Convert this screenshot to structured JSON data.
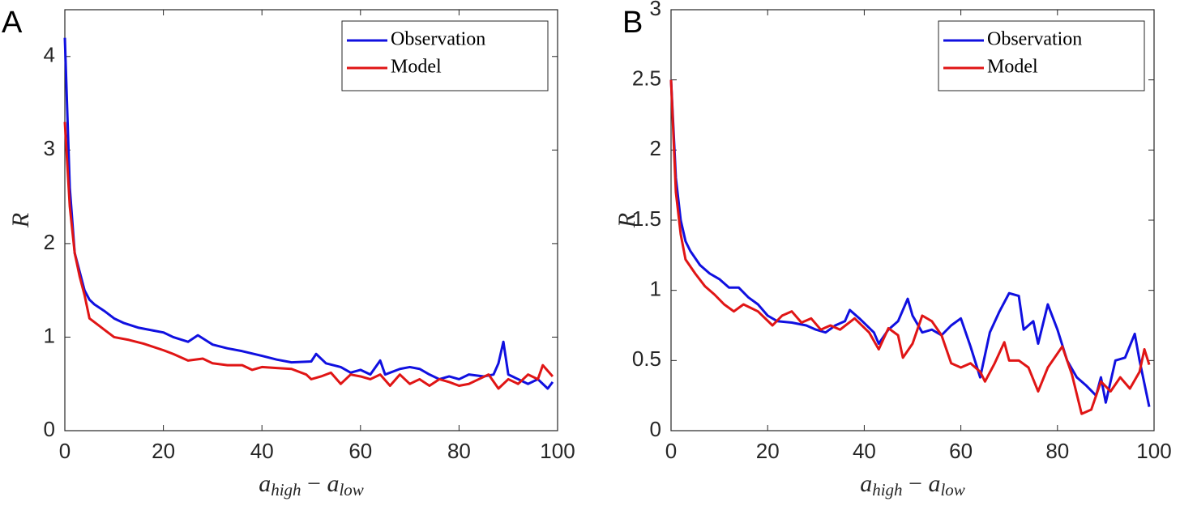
{
  "chart_data": [
    {
      "type": "line",
      "panel_label": "A",
      "ylabel": "R",
      "xlabel": [
        {
          "text": "a"
        },
        {
          "text": "high",
          "sub": true
        },
        {
          "text": " − "
        },
        {
          "text": "a"
        },
        {
          "text": "low",
          "sub": true
        }
      ],
      "xlim": [
        0,
        100
      ],
      "xticks": [
        0,
        20,
        40,
        60,
        80,
        100
      ],
      "ylim": [
        0,
        4.5
      ],
      "yticks": [
        0,
        1,
        2,
        3,
        4
      ],
      "legend": "upper right",
      "series": [
        {
          "name": "Observation",
          "color": "#1010e0",
          "x": [
            0,
            1,
            2,
            3,
            4,
            5,
            6,
            8,
            10,
            12,
            15,
            18,
            20,
            22,
            25,
            27,
            30,
            33,
            36,
            40,
            43,
            46,
            50,
            51,
            53,
            56,
            58,
            60,
            62,
            64,
            65,
            68,
            70,
            72,
            74,
            76,
            78,
            80,
            82,
            85,
            87,
            88,
            89,
            90,
            92,
            94,
            96,
            98,
            99
          ],
          "values": [
            4.2,
            2.6,
            1.9,
            1.7,
            1.5,
            1.4,
            1.35,
            1.28,
            1.2,
            1.15,
            1.1,
            1.07,
            1.05,
            1.0,
            0.95,
            1.02,
            0.92,
            0.88,
            0.85,
            0.8,
            0.76,
            0.73,
            0.74,
            0.82,
            0.72,
            0.68,
            0.62,
            0.65,
            0.6,
            0.75,
            0.6,
            0.66,
            0.68,
            0.66,
            0.6,
            0.55,
            0.58,
            0.55,
            0.6,
            0.58,
            0.6,
            0.72,
            0.95,
            0.6,
            0.55,
            0.5,
            0.55,
            0.45,
            0.52
          ]
        },
        {
          "name": "Model",
          "color": "#e01515",
          "x": [
            0,
            1,
            2,
            3,
            4,
            5,
            7,
            10,
            13,
            16,
            20,
            22,
            25,
            28,
            30,
            33,
            36,
            38,
            40,
            43,
            46,
            49,
            50,
            52,
            54,
            56,
            58,
            60,
            62,
            64,
            66,
            68,
            70,
            72,
            74,
            76,
            78,
            80,
            82,
            84,
            86,
            88,
            90,
            92,
            94,
            96,
            97,
            99
          ],
          "values": [
            3.3,
            2.4,
            1.9,
            1.65,
            1.45,
            1.2,
            1.12,
            1.0,
            0.97,
            0.93,
            0.86,
            0.82,
            0.75,
            0.77,
            0.72,
            0.7,
            0.7,
            0.65,
            0.68,
            0.67,
            0.66,
            0.6,
            0.55,
            0.58,
            0.62,
            0.5,
            0.6,
            0.58,
            0.55,
            0.6,
            0.48,
            0.6,
            0.5,
            0.55,
            0.48,
            0.55,
            0.52,
            0.48,
            0.5,
            0.55,
            0.6,
            0.45,
            0.55,
            0.5,
            0.6,
            0.55,
            0.7,
            0.58
          ]
        }
      ]
    },
    {
      "type": "line",
      "panel_label": "B",
      "ylabel": "R",
      "xlabel": [
        {
          "text": "a"
        },
        {
          "text": "high",
          "sub": true
        },
        {
          "text": " − "
        },
        {
          "text": "a"
        },
        {
          "text": "low",
          "sub": true
        }
      ],
      "xlim": [
        0,
        100
      ],
      "xticks": [
        0,
        20,
        40,
        60,
        80,
        100
      ],
      "ylim": [
        0,
        3
      ],
      "yticks": [
        0,
        0.5,
        1,
        1.5,
        2,
        2.5,
        3
      ],
      "legend": "upper right",
      "series": [
        {
          "name": "Observation",
          "color": "#1010e0",
          "x": [
            0,
            1,
            2,
            3,
            4,
            6,
            8,
            10,
            12,
            14,
            16,
            18,
            20,
            22,
            25,
            28,
            30,
            32,
            34,
            36,
            37,
            39,
            42,
            43,
            45,
            47,
            49,
            50,
            52,
            54,
            56,
            58,
            60,
            62,
            64,
            66,
            68,
            70,
            72,
            73,
            75,
            76,
            78,
            80,
            82,
            84,
            86,
            88,
            89,
            90,
            92,
            94,
            96,
            97,
            99
          ],
          "values": [
            2.5,
            1.8,
            1.5,
            1.35,
            1.28,
            1.18,
            1.12,
            1.08,
            1.02,
            1.02,
            0.95,
            0.9,
            0.82,
            0.78,
            0.77,
            0.75,
            0.72,
            0.7,
            0.75,
            0.78,
            0.86,
            0.8,
            0.7,
            0.62,
            0.72,
            0.78,
            0.94,
            0.82,
            0.7,
            0.72,
            0.68,
            0.75,
            0.8,
            0.6,
            0.38,
            0.7,
            0.85,
            0.98,
            0.96,
            0.72,
            0.78,
            0.62,
            0.9,
            0.72,
            0.5,
            0.38,
            0.32,
            0.25,
            0.38,
            0.2,
            0.5,
            0.52,
            0.69,
            0.5,
            0.17
          ]
        },
        {
          "name": "Model",
          "color": "#e01515",
          "x": [
            0,
            1,
            2,
            3,
            5,
            7,
            9,
            11,
            13,
            15,
            18,
            21,
            23,
            25,
            27,
            29,
            31,
            33,
            35,
            38,
            41,
            43,
            45,
            47,
            48,
            50,
            52,
            54,
            56,
            58,
            60,
            62,
            64,
            65,
            67,
            69,
            70,
            72,
            74,
            76,
            78,
            80,
            81,
            83,
            85,
            87,
            89,
            91,
            93,
            95,
            97,
            98,
            99
          ],
          "values": [
            2.5,
            1.7,
            1.4,
            1.22,
            1.12,
            1.03,
            0.97,
            0.9,
            0.85,
            0.9,
            0.85,
            0.75,
            0.82,
            0.85,
            0.77,
            0.8,
            0.72,
            0.75,
            0.72,
            0.8,
            0.7,
            0.58,
            0.73,
            0.68,
            0.52,
            0.62,
            0.82,
            0.78,
            0.68,
            0.48,
            0.45,
            0.48,
            0.42,
            0.35,
            0.48,
            0.63,
            0.5,
            0.5,
            0.45,
            0.28,
            0.45,
            0.55,
            0.6,
            0.4,
            0.12,
            0.15,
            0.35,
            0.28,
            0.38,
            0.3,
            0.42,
            0.58,
            0.47
          ]
        }
      ]
    }
  ]
}
